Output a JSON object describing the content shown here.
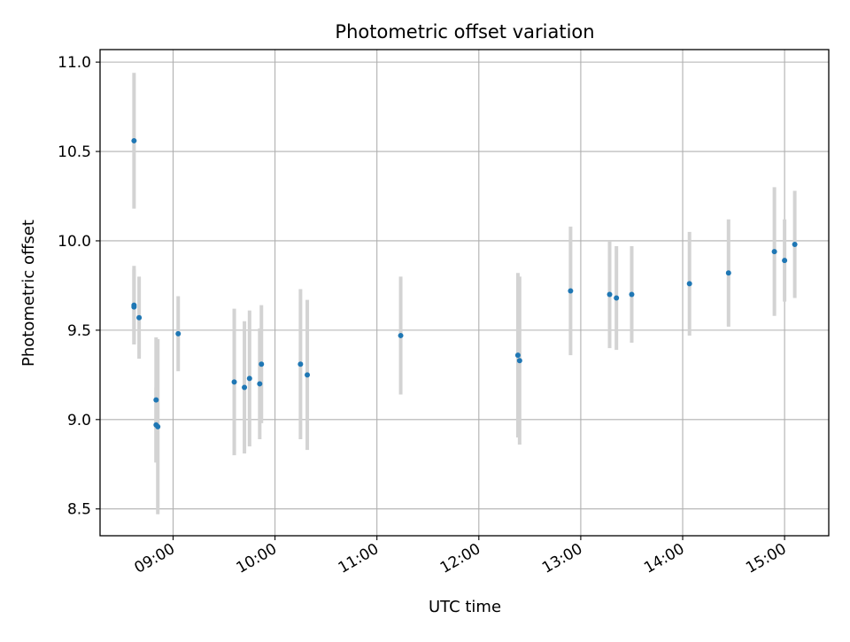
{
  "chart_data": {
    "type": "scatter",
    "title": "Photometric offset variation",
    "xlabel": "UTC time",
    "ylabel": "Photometric offset",
    "x_ticks": [
      "09:00",
      "10:00",
      "11:00",
      "12:00",
      "13:00",
      "14:00",
      "15:00"
    ],
    "y_ticks": [
      "8.5",
      "9.0",
      "9.5",
      "10.0",
      "10.5",
      "11.0"
    ],
    "xlim": [
      "08:17",
      "15:26"
    ],
    "ylim": [
      8.35,
      11.07
    ],
    "grid": true,
    "marker_color": "#1f77b4",
    "errorbar_color": "#d3d3d3",
    "points": [
      {
        "x": "08:37",
        "y": 10.56,
        "err": 0.38
      },
      {
        "x": "08:37",
        "y": 9.64,
        "err": 0.22
      },
      {
        "x": "08:37",
        "y": 9.63,
        "err": 0.21
      },
      {
        "x": "08:40",
        "y": 9.57,
        "err": 0.23
      },
      {
        "x": "08:50",
        "y": 9.11,
        "err": 0.35
      },
      {
        "x": "08:50",
        "y": 8.97,
        "err": 0.21
      },
      {
        "x": "08:51",
        "y": 8.96,
        "err": 0.49
      },
      {
        "x": "09:03",
        "y": 9.48,
        "err": 0.21
      },
      {
        "x": "09:36",
        "y": 9.21,
        "err": 0.41
      },
      {
        "x": "09:42",
        "y": 9.18,
        "err": 0.37
      },
      {
        "x": "09:45",
        "y": 9.23,
        "err": 0.38
      },
      {
        "x": "09:51",
        "y": 9.2,
        "err": 0.31
      },
      {
        "x": "09:52",
        "y": 9.31,
        "err": 0.33
      },
      {
        "x": "10:15",
        "y": 9.31,
        "err": 0.42
      },
      {
        "x": "10:19",
        "y": 9.25,
        "err": 0.42
      },
      {
        "x": "11:14",
        "y": 9.47,
        "err": 0.33
      },
      {
        "x": "12:23",
        "y": 9.36,
        "err": 0.46
      },
      {
        "x": "12:24",
        "y": 9.33,
        "err": 0.47
      },
      {
        "x": "12:54",
        "y": 9.72,
        "err": 0.36
      },
      {
        "x": "13:17",
        "y": 9.7,
        "err": 0.3
      },
      {
        "x": "13:21",
        "y": 9.68,
        "err": 0.29
      },
      {
        "x": "13:30",
        "y": 9.7,
        "err": 0.27
      },
      {
        "x": "14:04",
        "y": 9.76,
        "err": 0.29
      },
      {
        "x": "14:27",
        "y": 9.82,
        "err": 0.3
      },
      {
        "x": "14:54",
        "y": 9.94,
        "err": 0.36
      },
      {
        "x": "15:00",
        "y": 9.89,
        "err": 0.23
      },
      {
        "x": "15:06",
        "y": 9.98,
        "err": 0.3
      }
    ]
  }
}
